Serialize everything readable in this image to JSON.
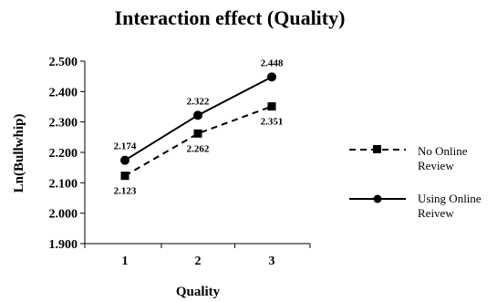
{
  "chart_data": {
    "type": "line",
    "title": "Interaction effect (Quality)",
    "xlabel": "Quality",
    "ylabel": "Ln(Bullwhip)",
    "categories": [
      "1",
      "2",
      "3"
    ],
    "ylim": [
      1.9,
      2.5
    ],
    "yticks": [
      "1.900",
      "2.000",
      "2.100",
      "2.200",
      "2.300",
      "2.400",
      "2.500"
    ],
    "grid": false,
    "legend_position": "right",
    "series": [
      {
        "name_lines": [
          "No Online",
          "Review"
        ],
        "values": [
          2.123,
          2.262,
          2.351
        ],
        "labels": [
          "2.123",
          "2.262",
          "2.351"
        ],
        "line_style": "dashed",
        "marker": "square",
        "color": "#000000"
      },
      {
        "name_lines": [
          "Using Online",
          "Reivew"
        ],
        "values": [
          2.174,
          2.322,
          2.448
        ],
        "labels": [
          "2.174",
          "2.322",
          "2.448"
        ],
        "line_style": "solid",
        "marker": "circle",
        "color": "#000000"
      }
    ]
  }
}
